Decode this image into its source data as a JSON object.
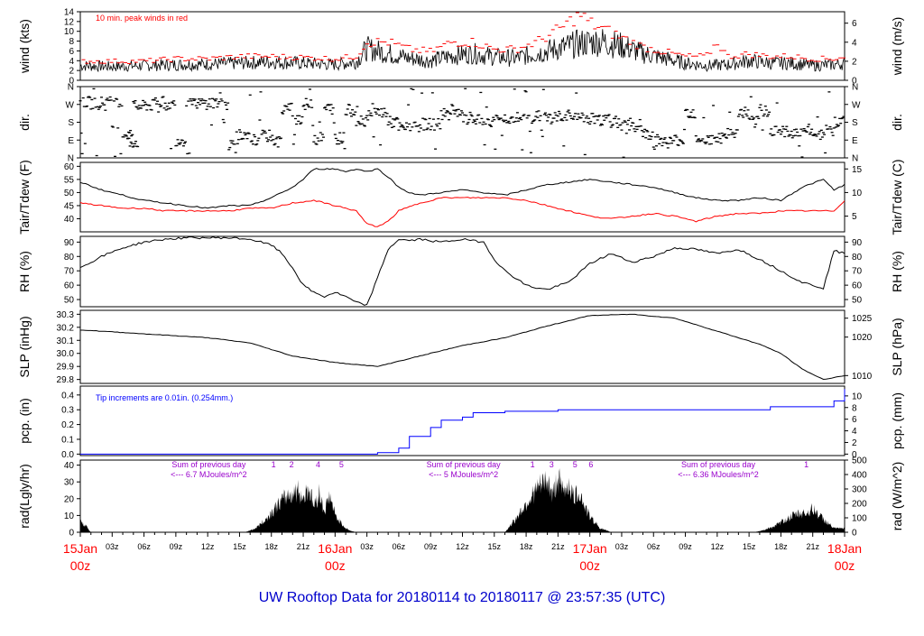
{
  "footer_title": "UW Rooftop Data for 20180114  to  20180117 @ 23:57:35  (UTC)",
  "colors": {
    "frame": "#000000",
    "data": "#000000",
    "peak": "#ff0000",
    "dewpoint": "#ff0000",
    "precip": "#0000ff",
    "annotation_purple": "#9900cc",
    "date_label": "#ff0000",
    "footer": "#0000cc"
  },
  "x_axis": {
    "hour_ticks": [
      "03z",
      "06z",
      "09z",
      "12z",
      "15z",
      "18z",
      "21z",
      "03z",
      "06z",
      "09z",
      "12z",
      "15z",
      "18z",
      "21z",
      "03z",
      "06z",
      "09z",
      "12z",
      "15z",
      "18z",
      "21z"
    ],
    "day_labels": [
      {
        "date": "15Jan",
        "hour": "00z",
        "at_hours": 0
      },
      {
        "date": "16Jan",
        "hour": "00z",
        "at_hours": 24
      },
      {
        "date": "17Jan",
        "hour": "00z",
        "at_hours": 48
      },
      {
        "date": "18Jan",
        "hour": "00z",
        "at_hours": 72
      }
    ],
    "range_hours": [
      0,
      72
    ]
  },
  "chart_data": [
    {
      "type": "line",
      "ylabel": "wind (kts)",
      "ylabel_right": "wind (m/s)",
      "ylim": [
        0,
        14
      ],
      "yticks": [
        "0",
        "2",
        "4",
        "6",
        "8",
        "10",
        "12",
        "14"
      ],
      "right_ticks": [
        {
          "value": 0,
          "label": "0"
        },
        {
          "value": 3.888,
          "label": "2"
        },
        {
          "value": 7.776,
          "label": "4"
        },
        {
          "value": 11.664,
          "label": "6"
        }
      ],
      "annotation": "10 min. peak winds in red",
      "series": [
        {
          "role": "mean",
          "x": [
            0,
            3,
            6,
            9,
            12,
            15,
            18,
            21,
            24,
            26,
            27,
            29,
            31,
            33,
            35,
            37,
            39,
            41,
            43,
            45,
            47,
            49,
            50,
            51,
            53,
            55,
            57,
            59,
            61,
            63,
            65,
            67,
            69,
            71,
            72
          ],
          "y": [
            3,
            2.8,
            3,
            3.2,
            3.3,
            3.5,
            3.8,
            3.5,
            3.2,
            3.8,
            6.5,
            5.5,
            4.5,
            4,
            5,
            5.5,
            4.8,
            4.5,
            5.5,
            6.5,
            7.5,
            8,
            7.5,
            7,
            5.5,
            4.5,
            3.5,
            3,
            3.2,
            4,
            3.5,
            3.5,
            3,
            3.2,
            3.5
          ]
        },
        {
          "role": "peak",
          "x": [
            0,
            3,
            6,
            9,
            12,
            15,
            18,
            21,
            24,
            26,
            27,
            29,
            31,
            33,
            35,
            37,
            39,
            41,
            43,
            45,
            46,
            47,
            48,
            49,
            50,
            51,
            53,
            55,
            57,
            59,
            60,
            61,
            63,
            65,
            67,
            69,
            71,
            72
          ],
          "y": [
            4,
            4,
            4,
            4.5,
            4.5,
            5,
            5,
            4.8,
            4.5,
            5,
            8,
            8,
            6.5,
            6,
            8,
            8,
            6.5,
            6.5,
            8,
            10.5,
            12,
            14,
            12,
            11,
            10,
            9,
            7,
            6,
            5,
            5,
            8,
            5,
            5.5,
            5,
            5,
            4.5,
            4.5,
            5
          ]
        }
      ]
    },
    {
      "type": "scatter",
      "ylabel": "dir.",
      "ylabel_right": "dir.",
      "ylim": [
        0,
        360
      ],
      "yticks": [
        "N",
        "E",
        "S",
        "W",
        "N"
      ],
      "x": [
        0,
        1,
        2,
        3,
        4,
        4.5,
        5,
        6,
        7,
        8,
        9,
        10,
        11,
        12,
        13,
        14,
        15,
        16,
        17,
        18,
        19,
        20,
        21,
        22,
        23,
        24,
        25,
        26,
        27,
        28,
        29,
        30,
        31,
        32,
        33,
        34,
        35,
        36,
        37,
        38,
        39,
        40,
        41,
        42,
        43,
        44,
        45,
        46,
        47,
        48,
        49,
        50,
        51,
        52,
        53,
        54,
        55,
        56,
        57,
        58,
        59,
        60,
        61,
        62,
        63,
        64,
        65,
        66,
        67,
        68,
        69,
        70,
        71,
        72
      ],
      "y": [
        280,
        275,
        280,
        270,
        120,
        80,
        260,
        265,
        280,
        270,
        90,
        270,
        275,
        280,
        270,
        70,
        100,
        90,
        110,
        80,
        250,
        200,
        270,
        100,
        250,
        100,
        240,
        190,
        220,
        230,
        180,
        150,
        160,
        170,
        170,
        220,
        220,
        200,
        190,
        180,
        190,
        200,
        200,
        200,
        210,
        200,
        210,
        200,
        200,
        200,
        190,
        180,
        170,
        150,
        120,
        90,
        80,
        90,
        230,
        100,
        90,
        100,
        120,
        230,
        180,
        240,
        140,
        130,
        130,
        140,
        120,
        140,
        180,
        280
      ]
    },
    {
      "type": "line",
      "ylabel": "Tair/Tdew (F)",
      "ylabel_right": "Tair/Tdew (C)",
      "ylim": [
        35,
        61.5
      ],
      "yticks": [
        "40",
        "45",
        "50",
        "55",
        "60"
      ],
      "right_ticks": [
        {
          "value": 41,
          "label": "5"
        },
        {
          "value": 50,
          "label": "10"
        },
        {
          "value": 59,
          "label": "15"
        }
      ],
      "series": [
        {
          "name": "Tair",
          "x": [
            0,
            2,
            4,
            6,
            8,
            10,
            12,
            14,
            16,
            18,
            20,
            21,
            22,
            24,
            25,
            26,
            27,
            28,
            29,
            30,
            31,
            32,
            34,
            36,
            38,
            40,
            42,
            44,
            46,
            48,
            50,
            52,
            54,
            56,
            58,
            60,
            62,
            64,
            66,
            68,
            70,
            71,
            72
          ],
          "y": [
            54,
            51,
            49,
            47,
            46,
            45,
            44,
            45,
            45,
            48,
            52,
            55,
            59,
            59,
            58,
            59,
            58,
            59,
            56,
            52,
            50,
            49,
            50,
            51,
            50,
            49,
            51,
            53,
            54,
            55,
            54,
            53,
            52,
            50,
            48,
            47,
            47,
            48,
            47,
            52,
            55,
            51,
            53
          ]
        },
        {
          "name": "Tdew",
          "x": [
            0,
            2,
            4,
            6,
            8,
            10,
            12,
            14,
            16,
            18,
            20,
            22,
            24,
            26,
            27,
            28,
            29,
            30,
            32,
            34,
            36,
            38,
            40,
            42,
            44,
            46,
            48,
            50,
            52,
            54,
            56,
            58,
            60,
            62,
            64,
            66,
            68,
            70,
            71,
            72
          ],
          "y": [
            46,
            45,
            44,
            44,
            43,
            43,
            43,
            43,
            44,
            44,
            46,
            47,
            45,
            43,
            38,
            37,
            39,
            43,
            46,
            48,
            48,
            48,
            48,
            47,
            45,
            43,
            41,
            40,
            41,
            42,
            41,
            39,
            41,
            42,
            42,
            43,
            43,
            43,
            43,
            47
          ]
        }
      ]
    },
    {
      "type": "line",
      "ylabel": "RH (%)",
      "ylabel_right": "RH (%)",
      "ylim": [
        45,
        94
      ],
      "yticks": [
        "50",
        "60",
        "70",
        "80",
        "90"
      ],
      "x": [
        0,
        2,
        4,
        6,
        8,
        10,
        12,
        14,
        16,
        18,
        19,
        20,
        21,
        22,
        23,
        24,
        25,
        26,
        27,
        28,
        29,
        30,
        31,
        32,
        34,
        36,
        38,
        39,
        40,
        41,
        42,
        43,
        44,
        46,
        48,
        50,
        52,
        54,
        56,
        58,
        60,
        62,
        64,
        66,
        68,
        70,
        71,
        72
      ],
      "y": [
        72,
        80,
        86,
        90,
        92,
        93,
        93,
        93,
        92,
        88,
        82,
        72,
        60,
        55,
        52,
        55,
        52,
        48,
        46,
        65,
        85,
        92,
        91,
        92,
        90,
        92,
        90,
        78,
        70,
        65,
        60,
        58,
        57,
        62,
        75,
        82,
        76,
        80,
        86,
        85,
        82,
        85,
        78,
        70,
        62,
        58,
        84,
        82
      ]
    },
    {
      "type": "line",
      "ylabel": "SLP (inHg)",
      "ylabel_right": "SLP (hPa)",
      "ylim": [
        29.77,
        30.33
      ],
      "yticks": [
        "29.8",
        "29.9",
        "30.0",
        "30.1",
        "30.2",
        "30.3"
      ],
      "right_ticks": [
        {
          "value": 29.83,
          "label": "1010"
        },
        {
          "value": 30.125,
          "label": "1020"
        },
        {
          "value": 30.27,
          "label": "1025"
        }
      ],
      "x": [
        0,
        4,
        8,
        12,
        16,
        20,
        24,
        28,
        32,
        36,
        40,
        44,
        48,
        52,
        56,
        60,
        64,
        66,
        68,
        70,
        72
      ],
      "y": [
        30.18,
        30.16,
        30.14,
        30.12,
        30.08,
        29.98,
        29.93,
        29.9,
        29.98,
        30.06,
        30.12,
        30.21,
        30.29,
        30.3,
        30.27,
        30.17,
        30.07,
        30.0,
        29.88,
        29.8,
        29.83
      ]
    },
    {
      "type": "area",
      "ylabel": "pcp. (in)",
      "ylabel_right": "pcp. (mm)",
      "ylim": [
        -0.01,
        0.46
      ],
      "yticks": [
        "0.0",
        "0.1",
        "0.2",
        "0.3",
        "0.4"
      ],
      "right_ticks": [
        {
          "value": 0,
          "label": "0"
        },
        {
          "value": 0.0787,
          "label": "2"
        },
        {
          "value": 0.1575,
          "label": "4"
        },
        {
          "value": 0.2362,
          "label": "6"
        },
        {
          "value": 0.315,
          "label": "8"
        },
        {
          "value": 0.3937,
          "label": "10"
        }
      ],
      "annotation": "Tip increments are 0.01in. (0.254mm.)",
      "x": [
        0,
        26.5,
        28,
        30,
        31,
        33,
        34,
        36,
        37,
        40,
        45,
        50,
        56,
        62,
        65,
        70,
        71,
        72
      ],
      "y": [
        0,
        0,
        0.01,
        0.04,
        0.12,
        0.18,
        0.23,
        0.25,
        0.28,
        0.29,
        0.3,
        0.3,
        0.3,
        0.3,
        0.32,
        0.32,
        0.36,
        0.44
      ]
    },
    {
      "type": "area",
      "ylabel": "rad(Lgly/hr)",
      "ylabel_right": "rad (W/m^2)",
      "ylim": [
        0,
        43
      ],
      "yticks": [
        "0",
        "10",
        "20",
        "30",
        "40"
      ],
      "right_ticks": [
        {
          "value": 0,
          "label": "0"
        },
        {
          "value": 8.6,
          "label": "100"
        },
        {
          "value": 17.2,
          "label": "200"
        },
        {
          "value": 25.8,
          "label": "300"
        },
        {
          "value": 34.4,
          "label": "400"
        },
        {
          "value": 43,
          "label": "500"
        }
      ],
      "annotations": [
        {
          "line1": "Sum of previous day",
          "line2": "<--- 6.7 MJoules/m^2",
          "day_index": 0
        },
        {
          "line1": "Sum of previous day",
          "line2": "<--- 5 MJoules/m^2",
          "day_index": 1
        },
        {
          "line1": "Sum of previous day",
          "line2": "<--- 6.36 MJoules/m^2",
          "day_index": 2
        }
      ],
      "peak_markers": [
        {
          "label": "1",
          "hour": 18.2
        },
        {
          "label": "2",
          "hour": 19.9
        },
        {
          "label": "4",
          "hour": 22.4
        },
        {
          "label": "5",
          "hour": 24.6
        },
        {
          "label": "1",
          "hour": 42.6
        },
        {
          "label": "3",
          "hour": 44.4
        },
        {
          "label": "5",
          "hour": 46.6
        },
        {
          "label": "6",
          "hour": 48.1
        },
        {
          "label": "1",
          "hour": 68.4
        }
      ],
      "x": [
        0,
        0.5,
        1,
        15.5,
        16.5,
        17.5,
        18.5,
        19.5,
        20.5,
        21,
        21.5,
        22,
        22.5,
        23,
        23.5,
        24,
        24.5,
        25,
        25.5,
        26,
        40,
        41,
        42,
        43,
        44,
        44.5,
        45,
        45.5,
        46,
        46.5,
        47,
        47.5,
        48,
        49,
        50,
        63.5,
        64.5,
        65.5,
        66.5,
        67.5,
        68.5,
        69,
        69.5,
        70,
        71
      ],
      "y": [
        8,
        5,
        0,
        0,
        3,
        10,
        20,
        28,
        32,
        26,
        35,
        20,
        30,
        16,
        28,
        13,
        8,
        3,
        1,
        0,
        0,
        10,
        22,
        33,
        40,
        28,
        42,
        30,
        38,
        26,
        32,
        20,
        12,
        3,
        0,
        0,
        2,
        5,
        10,
        14,
        15,
        18,
        14,
        10,
        3
      ]
    }
  ]
}
